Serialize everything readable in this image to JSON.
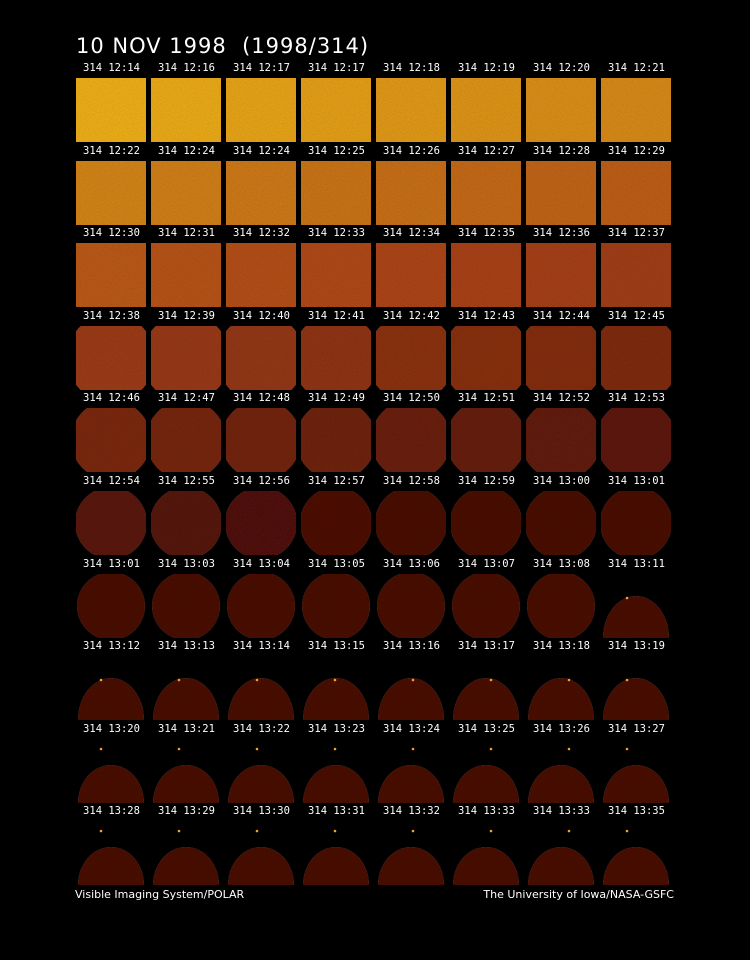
{
  "title": "10 NOV 1998  (1998/314)",
  "footer": {
    "left": "Visible Imaging System/POLAR",
    "right": "The University of Iowa/NASA-GSFC"
  },
  "frames": [
    [
      "314 12:14",
      "314 12:16",
      "314 12:17",
      "314 12:17",
      "314 12:18",
      "314 12:19",
      "314 12:20",
      "314 12:21"
    ],
    [
      "314 12:22",
      "314 12:24",
      "314 12:24",
      "314 12:25",
      "314 12:26",
      "314 12:27",
      "314 12:28",
      "314 12:29"
    ],
    [
      "314 12:30",
      "314 12:31",
      "314 12:32",
      "314 12:33",
      "314 12:34",
      "314 12:35",
      "314 12:36",
      "314 12:37"
    ],
    [
      "314 12:38",
      "314 12:39",
      "314 12:40",
      "314 12:41",
      "314 12:42",
      "314 12:43",
      "314 12:44",
      "314 12:45"
    ],
    [
      "314 12:46",
      "314 12:47",
      "314 12:48",
      "314 12:49",
      "314 12:50",
      "314 12:51",
      "314 12:52",
      "314 12:53"
    ],
    [
      "314 12:54",
      "314 12:55",
      "314 12:56",
      "314 12:57",
      "314 12:58",
      "314 12:59",
      "314 13:00",
      "314 13:01"
    ],
    [
      "314 13:01",
      "314 13:03",
      "314 13:04",
      "314 13:05",
      "314 13:06",
      "314 13:07",
      "314 13:08",
      "314 13:11"
    ],
    [
      "314 13:12",
      "314 13:13",
      "314 13:14",
      "314 13:15",
      "314 13:16",
      "314 13:17",
      "314 13:18",
      "314 13:19"
    ],
    [
      "314 13:20",
      "314 13:21",
      "314 13:22",
      "314 13:23",
      "314 13:24",
      "314 13:25",
      "314 13:26",
      "314 13:27"
    ],
    [
      "314 13:28",
      "314 13:29",
      "314 13:30",
      "314 13:31",
      "314 13:32",
      "314 13:33",
      "314 13:33",
      "314 13:35"
    ]
  ],
  "colors": {
    "background": "#000000",
    "bright": "#f2b21a",
    "mid": "#b0461a",
    "dark": "#4a0e06"
  }
}
